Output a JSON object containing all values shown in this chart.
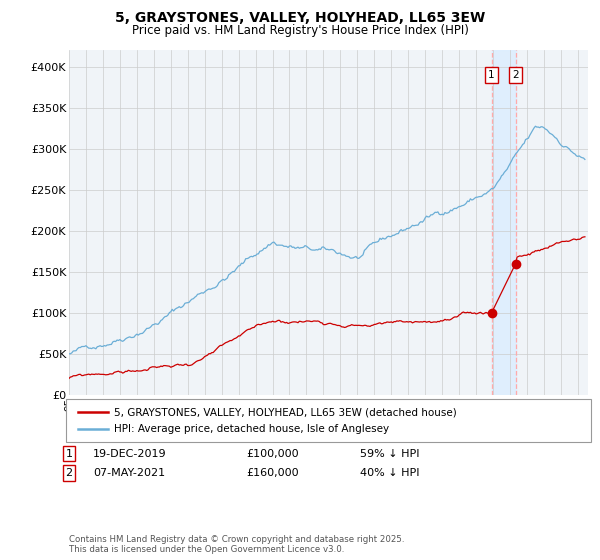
{
  "title": "5, GRAYSTONES, VALLEY, HOLYHEAD, LL65 3EW",
  "subtitle": "Price paid vs. HM Land Registry's House Price Index (HPI)",
  "hpi_color": "#6baed6",
  "price_color": "#cc0000",
  "background_color": "#ffffff",
  "plot_bg_color": "#f0f4f8",
  "grid_color": "#cccccc",
  "ylim": [
    0,
    420000
  ],
  "yticks": [
    0,
    50000,
    100000,
    150000,
    200000,
    250000,
    300000,
    350000,
    400000
  ],
  "ytick_labels": [
    "£0",
    "£50K",
    "£100K",
    "£150K",
    "£200K",
    "£250K",
    "£300K",
    "£350K",
    "£400K"
  ],
  "transaction1": {
    "date": "19-DEC-2019",
    "price": 100000,
    "pct": "59% ↓ HPI",
    "label": "1"
  },
  "transaction2": {
    "date": "07-MAY-2021",
    "price": 160000,
    "pct": "40% ↓ HPI",
    "label": "2"
  },
  "footnote": "Contains HM Land Registry data © Crown copyright and database right 2025.\nThis data is licensed under the Open Government Licence v3.0.",
  "legend1": "5, GRAYSTONES, VALLEY, HOLYHEAD, LL65 3EW (detached house)",
  "legend2": "HPI: Average price, detached house, Isle of Anglesey"
}
